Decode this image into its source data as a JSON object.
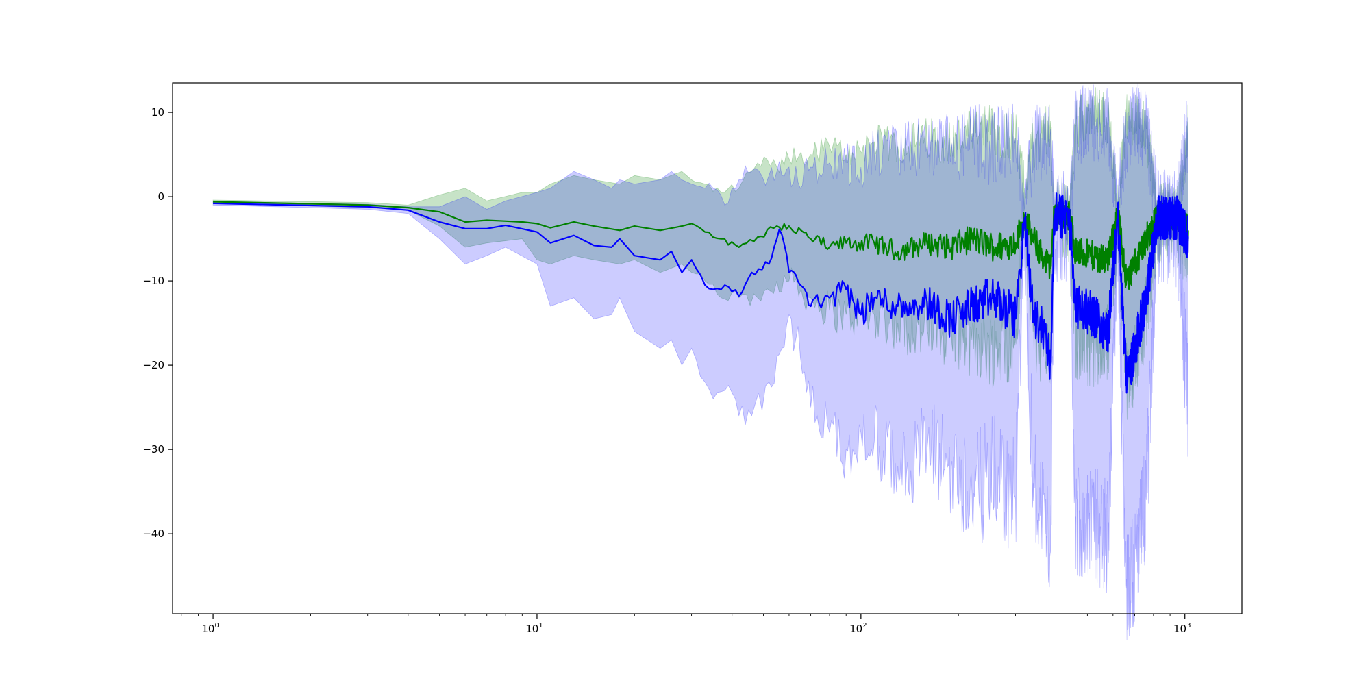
{
  "chart_data": {
    "type": "line",
    "title": "",
    "xlabel": "",
    "ylabel": "",
    "x_scale": "log",
    "xlim": [
      0.75,
      1500
    ],
    "ylim": [
      -49.5,
      13.5
    ],
    "grid": false,
    "legend": null,
    "x_ticks": [
      {
        "value": 1,
        "base": "10",
        "exp": "0"
      },
      {
        "value": 10,
        "base": "10",
        "exp": "1"
      },
      {
        "value": 100,
        "base": "10",
        "exp": "2"
      },
      {
        "value": 1000,
        "base": "10",
        "exp": "3"
      }
    ],
    "y_ticks": [
      {
        "value": 10,
        "label": "10"
      },
      {
        "value": 0,
        "label": "0"
      },
      {
        "value": -10,
        "label": "−10"
      },
      {
        "value": -20,
        "label": "−20"
      },
      {
        "value": -30,
        "label": "−30"
      },
      {
        "value": -40,
        "label": "−40"
      }
    ],
    "series": [
      {
        "color": "#008000",
        "band_color": "#008000",
        "band_opacity": 0.22,
        "points": [
          [
            1,
            -0.6,
            -0.8,
            -0.4
          ],
          [
            3,
            -1.0,
            -1.3,
            -0.7
          ],
          [
            4,
            -1.3,
            -1.6,
            -1.0
          ],
          [
            5,
            -1.8,
            -3.5,
            0.2
          ],
          [
            6,
            -3.0,
            -6.0,
            1.0
          ],
          [
            7,
            -2.8,
            -5.5,
            -0.5
          ],
          [
            9,
            -3.0,
            -5.0,
            0.5
          ],
          [
            10,
            -3.2,
            -7.5,
            0.5
          ],
          [
            11,
            -3.7,
            -8.0,
            1.5
          ],
          [
            13,
            -3.0,
            -7.0,
            2.5
          ],
          [
            15,
            -3.5,
            -7.5,
            2.0
          ],
          [
            18,
            -4.0,
            -8.0,
            1.5
          ],
          [
            20,
            -3.5,
            -7.5,
            2.5
          ],
          [
            24,
            -4.0,
            -9.0,
            2.0
          ],
          [
            28,
            -3.5,
            -8.0,
            3.0
          ],
          [
            30,
            -3.2,
            -9.0,
            2.0
          ],
          [
            33,
            -4.2,
            -10.0,
            1.5
          ],
          [
            37,
            -5.0,
            -12.0,
            0.5
          ],
          [
            42,
            -6.0,
            -12.0,
            1.0
          ],
          [
            48,
            -4.8,
            -12.0,
            4.0
          ],
          [
            55,
            -3.5,
            -10.0,
            3.5
          ],
          [
            60,
            -3.5,
            -10.0,
            4.5
          ],
          [
            70,
            -5.0,
            -12.0,
            5.0
          ],
          [
            80,
            -6.0,
            -13.5,
            6.0
          ],
          [
            90,
            -5.5,
            -14.0,
            5.0
          ],
          [
            110,
            -5.5,
            -14.0,
            6.5
          ],
          [
            130,
            -6.5,
            -15.0,
            6.0
          ],
          [
            160,
            -5.5,
            -16.0,
            7.0
          ],
          [
            190,
            -6.0,
            -16.0,
            6.5
          ],
          [
            220,
            -5.0,
            -17.0,
            7.5
          ],
          [
            260,
            -6.0,
            -18.0,
            8.0
          ],
          [
            300,
            -5.5,
            -17.0,
            7.0
          ],
          [
            320,
            -2.5,
            -3.5,
            1.0
          ],
          [
            340,
            -5.0,
            -16.0,
            6.0
          ],
          [
            370,
            -7.5,
            -18.0,
            8.0
          ],
          [
            385,
            -8.5,
            -20.0,
            9.0
          ],
          [
            395,
            -2.0,
            -2.8,
            -1.2
          ],
          [
            440,
            -2.2,
            -3.0,
            -1.4
          ],
          [
            460,
            -6.5,
            -17.0,
            8.5
          ],
          [
            520,
            -7.0,
            -18.0,
            10.0
          ],
          [
            580,
            -7.5,
            -17.0,
            9.0
          ],
          [
            620,
            -2.0,
            -3.0,
            -1.0
          ],
          [
            660,
            -10.0,
            -22.0,
            9.5
          ],
          [
            700,
            -8.0,
            -20.0,
            9.0
          ],
          [
            760,
            -5.0,
            -14.0,
            8.0
          ],
          [
            820,
            -2.5,
            -3.5,
            -1.5
          ],
          [
            950,
            -2.5,
            -3.5,
            -1.5
          ],
          [
            1024,
            -4.0,
            -7.0,
            8.0
          ]
        ]
      },
      {
        "color": "#0000ff",
        "band_color": "#0000ff",
        "band_opacity": 0.2,
        "points": [
          [
            1,
            -0.8,
            -1.0,
            -0.6
          ],
          [
            3,
            -1.2,
            -1.5,
            -0.9
          ],
          [
            4,
            -1.6,
            -2.0,
            -1.2
          ],
          [
            5,
            -3.0,
            -5.0,
            -1.2
          ],
          [
            6,
            -3.8,
            -8.0,
            0.0
          ],
          [
            7,
            -3.8,
            -7.0,
            -1.5
          ],
          [
            8,
            -3.4,
            -6.0,
            -0.5
          ],
          [
            10,
            -4.2,
            -8.0,
            0.5
          ],
          [
            11,
            -5.5,
            -13.0,
            1.0
          ],
          [
            13,
            -4.6,
            -12.0,
            3.0
          ],
          [
            15,
            -5.8,
            -14.5,
            2.0
          ],
          [
            17,
            -6.0,
            -14.0,
            1.0
          ],
          [
            18,
            -5.0,
            -12.0,
            2.0
          ],
          [
            20,
            -7.0,
            -16.0,
            1.5
          ],
          [
            24,
            -7.5,
            -18.0,
            2.0
          ],
          [
            26,
            -6.5,
            -17.0,
            3.0
          ],
          [
            28,
            -9.0,
            -20.0,
            2.0
          ],
          [
            30,
            -7.5,
            -18.0,
            1.5
          ],
          [
            33,
            -10.5,
            -22.0,
            1.0
          ],
          [
            35,
            -11.0,
            -24.0,
            1.0
          ],
          [
            38,
            -10.5,
            -23.0,
            -1.0
          ],
          [
            42,
            -11.8,
            -26.0,
            2.0
          ],
          [
            46,
            -9.0,
            -26.0,
            3.0
          ],
          [
            52,
            -8.0,
            -22.0,
            2.5
          ],
          [
            55,
            -5.0,
            -19.0,
            3.0
          ],
          [
            57,
            -4.5,
            -18.0,
            2.5
          ],
          [
            60,
            -9.0,
            -14.0,
            3.5
          ],
          [
            65,
            -10.5,
            -19.0,
            1.0
          ],
          [
            70,
            -13.0,
            -25.0,
            3.5
          ],
          [
            80,
            -12.0,
            -28.0,
            4.0
          ],
          [
            90,
            -11.0,
            -30.0,
            4.0
          ],
          [
            100,
            -14.0,
            -28.0,
            3.5
          ],
          [
            110,
            -12.0,
            -29.0,
            5.0
          ],
          [
            130,
            -13.0,
            -32.0,
            5.5
          ],
          [
            160,
            -12.5,
            -30.0,
            6.0
          ],
          [
            190,
            -14.5,
            -32.0,
            5.5
          ],
          [
            220,
            -13.0,
            -35.0,
            6.5
          ],
          [
            260,
            -12.0,
            -33.0,
            6.0
          ],
          [
            300,
            -14.5,
            -36.0,
            7.0
          ],
          [
            320,
            -2.5,
            -3.5,
            -1.5
          ],
          [
            340,
            -14.0,
            -34.0,
            6.0
          ],
          [
            370,
            -16.0,
            -38.0,
            7.0
          ],
          [
            385,
            -20.0,
            -42.0,
            8.0
          ],
          [
            395,
            -2.2,
            -3.0,
            -1.5
          ],
          [
            440,
            -2.5,
            -3.2,
            -1.8
          ],
          [
            460,
            -13.0,
            -38.0,
            8.0
          ],
          [
            520,
            -14.0,
            -39.0,
            9.0
          ],
          [
            580,
            -16.0,
            -40.0,
            8.5
          ],
          [
            620,
            -2.0,
            -3.0,
            -1.0
          ],
          [
            660,
            -22.0,
            -46.5,
            7.0
          ],
          [
            700,
            -18.0,
            -44.0,
            9.0
          ],
          [
            760,
            -12.0,
            -36.0,
            8.0
          ],
          [
            820,
            -2.5,
            -3.5,
            -1.5
          ],
          [
            950,
            -2.6,
            -3.6,
            -1.6
          ],
          [
            1024,
            -5.0,
            -26.0,
            8.5
          ]
        ]
      }
    ]
  }
}
